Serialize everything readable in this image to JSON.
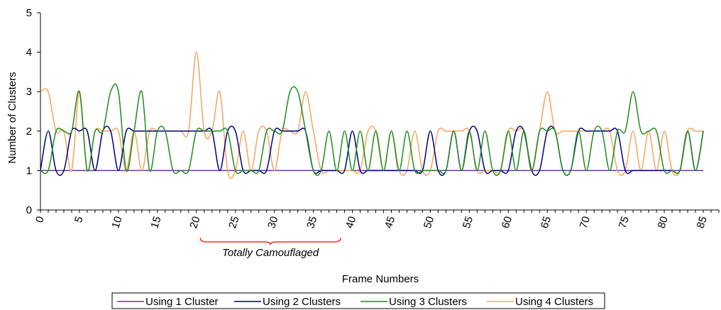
{
  "chart_data": {
    "type": "line",
    "title": "",
    "xlabel": "Frame Numbers",
    "ylabel": "Number of Clusters",
    "xlim": [
      0,
      87
    ],
    "ylim": [
      0,
      5
    ],
    "xticks": [
      0,
      5,
      10,
      15,
      20,
      25,
      30,
      35,
      40,
      45,
      50,
      55,
      60,
      65,
      70,
      75,
      80,
      85
    ],
    "yticks": [
      0,
      1,
      2,
      3,
      4,
      5
    ],
    "grid": false,
    "smoothed": true,
    "legend_position": "bottom",
    "annotation": {
      "text": "Totally Camouflaged",
      "x_start": 20.5,
      "x_end": 38.5
    },
    "x": [
      0,
      1,
      2,
      3,
      4,
      5,
      6,
      7,
      8,
      9,
      10,
      11,
      12,
      13,
      14,
      15,
      16,
      17,
      18,
      19,
      20,
      21,
      22,
      23,
      24,
      25,
      26,
      27,
      28,
      29,
      30,
      31,
      32,
      33,
      34,
      35,
      36,
      37,
      38,
      39,
      40,
      41,
      42,
      43,
      44,
      45,
      46,
      47,
      48,
      49,
      50,
      51,
      52,
      53,
      54,
      55,
      56,
      57,
      58,
      59,
      60,
      61,
      62,
      63,
      64,
      65,
      66,
      67,
      68,
      69,
      70,
      71,
      72,
      73,
      74,
      75,
      76,
      77,
      78,
      79,
      80,
      81,
      82,
      83,
      84,
      85
    ],
    "series": [
      {
        "name": "Using 1 Cluster",
        "color": "#7030A0",
        "values": [
          1,
          1,
          1,
          1,
          1,
          1,
          1,
          1,
          1,
          1,
          1,
          1,
          1,
          1,
          1,
          1,
          1,
          1,
          1,
          1,
          1,
          1,
          1,
          1,
          1,
          1,
          1,
          1,
          1,
          1,
          1,
          1,
          1,
          1,
          1,
          1,
          1,
          1,
          1,
          1,
          1,
          1,
          1,
          1,
          1,
          1,
          1,
          1,
          1,
          1,
          1,
          1,
          1,
          1,
          1,
          1,
          1,
          1,
          1,
          1,
          1,
          1,
          1,
          1,
          1,
          1,
          1,
          1,
          1,
          1,
          1,
          1,
          1,
          1,
          1,
          1,
          1,
          1,
          1,
          1,
          1,
          1,
          1,
          1,
          1,
          1
        ]
      },
      {
        "name": "Using 2 Clusters",
        "color": "#000080",
        "values": [
          1,
          2,
          1,
          1,
          2,
          2,
          2,
          1,
          2,
          2,
          1,
          2,
          2,
          2,
          2,
          2,
          2,
          2,
          2,
          2,
          2,
          2,
          2,
          1,
          2,
          2,
          1,
          1,
          1,
          1,
          2,
          2,
          2,
          2,
          2,
          1,
          1,
          1,
          1,
          1,
          2,
          1,
          1,
          1,
          1,
          1,
          1,
          1,
          1,
          1,
          2,
          1,
          1,
          2,
          1,
          2,
          2,
          1,
          1,
          1,
          1,
          2,
          2,
          1,
          1,
          2,
          2,
          1,
          1,
          2,
          2,
          2,
          2,
          2,
          2,
          1,
          1,
          1,
          1,
          1,
          1,
          1,
          1,
          2,
          1,
          2
        ]
      },
      {
        "name": "Using 3 Clusters",
        "color": "#1E8C1E",
        "values": [
          1,
          1,
          2,
          2,
          2,
          3,
          1,
          2,
          2,
          3,
          3,
          1,
          2,
          3,
          1,
          2,
          2,
          1,
          1,
          1,
          2,
          2,
          2,
          2,
          2,
          1,
          1,
          1,
          1,
          2,
          2,
          2,
          3,
          3,
          2,
          1,
          1,
          2,
          1,
          2,
          1,
          2,
          1,
          2,
          1,
          2,
          1,
          2,
          1,
          1,
          1,
          1,
          1,
          2,
          1,
          2,
          1,
          2,
          1,
          1,
          2,
          1,
          2,
          1,
          2,
          2,
          2,
          1,
          1,
          2,
          1,
          2,
          2,
          1,
          2,
          2,
          3,
          2,
          2,
          2,
          1,
          1,
          1,
          2,
          1,
          2
        ]
      },
      {
        "name": "Using 4 Clusters",
        "color": "#F4A460",
        "values": [
          3,
          3,
          2,
          2,
          1,
          3,
          1,
          2,
          2,
          2,
          2,
          1,
          2,
          1,
          2,
          2,
          2,
          2,
          2,
          2,
          4,
          2,
          2,
          3,
          1,
          1,
          2,
          1,
          2,
          2,
          1,
          2,
          2,
          2,
          3,
          2,
          1,
          1,
          1,
          1,
          1,
          1,
          2,
          2,
          1,
          2,
          1,
          1,
          2,
          1,
          1,
          2,
          2,
          2,
          2,
          2,
          1,
          1,
          1,
          1,
          2,
          2,
          2,
          1,
          2,
          3,
          2,
          2,
          2,
          2,
          2,
          2,
          2,
          2,
          1,
          1,
          2,
          1,
          2,
          1,
          2,
          1,
          1,
          2,
          2,
          2
        ]
      }
    ]
  }
}
